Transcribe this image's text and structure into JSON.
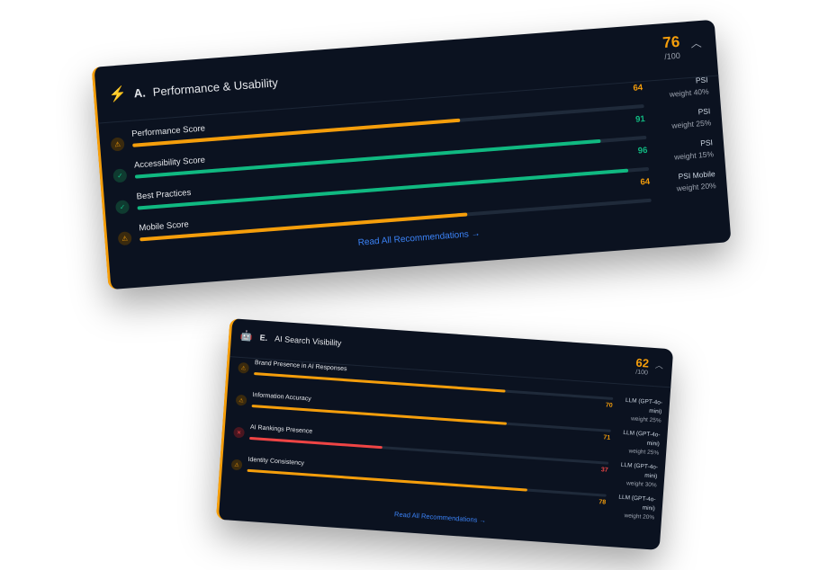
{
  "colors": {
    "warning": "#f59e0b",
    "good": "#10b981",
    "bad": "#ef4444",
    "link": "#3b82f6",
    "card": "#0b1220"
  },
  "cards": [
    {
      "icon": "lightning-icon",
      "letter": "A.",
      "title": "Performance & Usability",
      "score": "76",
      "score_max": "/100",
      "link": "Read All Recommendations",
      "rows": [
        {
          "label": "Performance Score",
          "value": 64,
          "status": "warning",
          "source": "PSI",
          "weight": "weight 40%"
        },
        {
          "label": "Accessibility Score",
          "value": 91,
          "status": "good",
          "source": "PSI",
          "weight": "weight 25%"
        },
        {
          "label": "Best Practices",
          "value": 96,
          "status": "good",
          "source": "PSI",
          "weight": "weight 15%"
        },
        {
          "label": "Mobile Score",
          "value": 64,
          "status": "warning",
          "source": "PSI Mobile",
          "weight": "weight 20%"
        }
      ]
    },
    {
      "icon": "robot-icon",
      "letter": "E.",
      "title": "AI Search Visibility",
      "score": "62",
      "score_max": "/100",
      "link": "Read All Recommendations",
      "rows": [
        {
          "label": "Brand Presence in AI Responses",
          "value": 70,
          "status": "warning",
          "source": "LLM (GPT-4o-mini)",
          "weight": "weight 25%"
        },
        {
          "label": "Information Accuracy",
          "value": 71,
          "status": "warning",
          "source": "LLM (GPT-4o-mini)",
          "weight": "weight 25%"
        },
        {
          "label": "AI Rankings Presence",
          "value": 37,
          "status": "bad",
          "source": "LLM (GPT-4o-mini)",
          "weight": "weight 30%"
        },
        {
          "label": "Identity Consistency",
          "value": 78,
          "status": "warning",
          "source": "LLM (GPT-4o-mini)",
          "weight": "weight 20%"
        }
      ]
    }
  ]
}
